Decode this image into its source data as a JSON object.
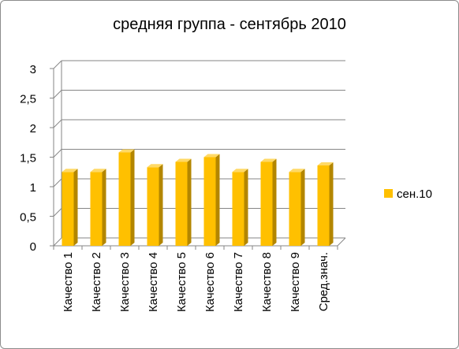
{
  "chart_data": {
    "type": "bar",
    "title": "средняя группа - сентябрь 2010",
    "categories": [
      "Качество 1",
      "Качество 2",
      "Качество 3",
      "Качество 4",
      "Качество 5",
      "Качество 6",
      "Качество 7",
      "Качество 8",
      "Качество 9",
      "Сред.знач."
    ],
    "series": [
      {
        "name": "сен.10",
        "values": [
          1.25,
          1.25,
          1.58,
          1.33,
          1.42,
          1.5,
          1.25,
          1.42,
          1.25,
          1.36
        ]
      }
    ],
    "ylim": [
      0,
      3
    ],
    "yticks": [
      "0",
      "0,5",
      "1",
      "1,5",
      "2",
      "2,5",
      "3"
    ],
    "grid": true,
    "legend": "right",
    "colors": {
      "bar_front": "#ffc000",
      "bar_side": "#b38600",
      "bar_top": "#ffd966",
      "grid": "#868686"
    }
  }
}
